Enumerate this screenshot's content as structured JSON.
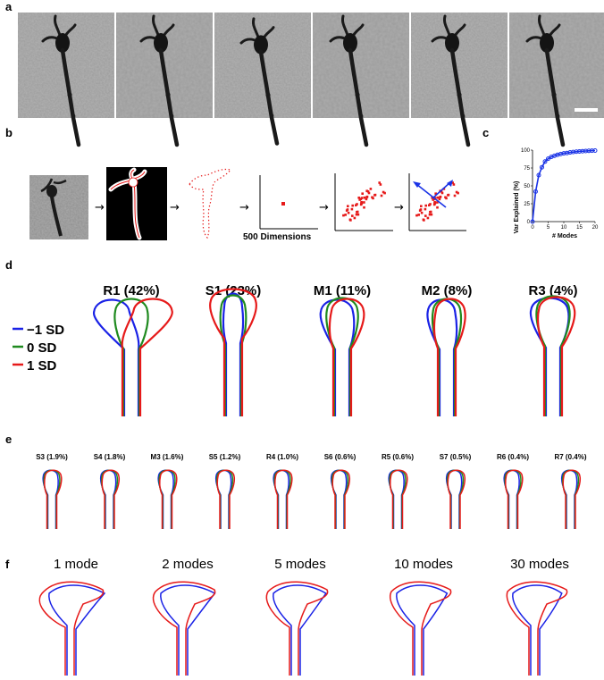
{
  "panel_labels": {
    "a": "a",
    "b": "b",
    "c": "c",
    "d": "d",
    "e": "e",
    "f": "f"
  },
  "panel_b": {
    "dimensions_label": "500 Dimensions"
  },
  "panel_c": {
    "chart_data": {
      "type": "line",
      "xlabel": "# Modes",
      "ylabel": "Var Explained (%)",
      "xlim": [
        0,
        20
      ],
      "ylim": [
        0,
        100
      ],
      "xticks": [
        0,
        5,
        10,
        15,
        20
      ],
      "yticks": [
        0,
        25,
        50,
        75,
        100
      ],
      "x": [
        0,
        1,
        2,
        3,
        4,
        5,
        6,
        7,
        8,
        9,
        10,
        11,
        12,
        13,
        14,
        15,
        16,
        17,
        18,
        19,
        20
      ],
      "y": [
        0,
        42,
        65,
        76,
        84,
        88,
        90.5,
        92,
        93.5,
        94.5,
        95.5,
        96,
        96.8,
        97.3,
        97.8,
        98.2,
        98.5,
        98.8,
        99,
        99.2,
        99.4
      ],
      "color": "#1a33e6"
    }
  },
  "panel_d": {
    "modes": [
      {
        "label": "R1 (42%)",
        "kind": "R"
      },
      {
        "label": "S1 (23%)",
        "kind": "S"
      },
      {
        "label": "M1 (11%)",
        "kind": "M"
      },
      {
        "label": "M2 (8%)",
        "kind": "M"
      },
      {
        "label": "R3 (4%)",
        "kind": "R"
      }
    ],
    "legend": [
      {
        "label": "−1 SD",
        "color": "#1a22e6"
      },
      {
        "label": "0 SD",
        "color": "#1f8a1f"
      },
      {
        "label": "1 SD",
        "color": "#e61a1a"
      }
    ]
  },
  "panel_e": {
    "modes": [
      "S3 (1.9%)",
      "S4 (1.8%)",
      "M3 (1.6%)",
      "S5 (1.2%)",
      "R4 (1.0%)",
      "S6 (0.6%)",
      "R5 (0.6%)",
      "S7 (0.5%)",
      "R6 (0.4%)",
      "R7 (0.4%)"
    ]
  },
  "panel_f": {
    "reconstructions": [
      "1 mode",
      "2 modes",
      "5 modes",
      "10 modes",
      "30 modes"
    ]
  },
  "colors": {
    "blue": "#1a22e6",
    "green": "#1f8a1f",
    "red": "#e61a1a",
    "micrograph_bg": "#9a9a9a"
  },
  "icons": [
    "micrograph-frame",
    "binary-mask",
    "contour-points",
    "arrow-icon",
    "scatter-cloud",
    "pca-axes"
  ]
}
